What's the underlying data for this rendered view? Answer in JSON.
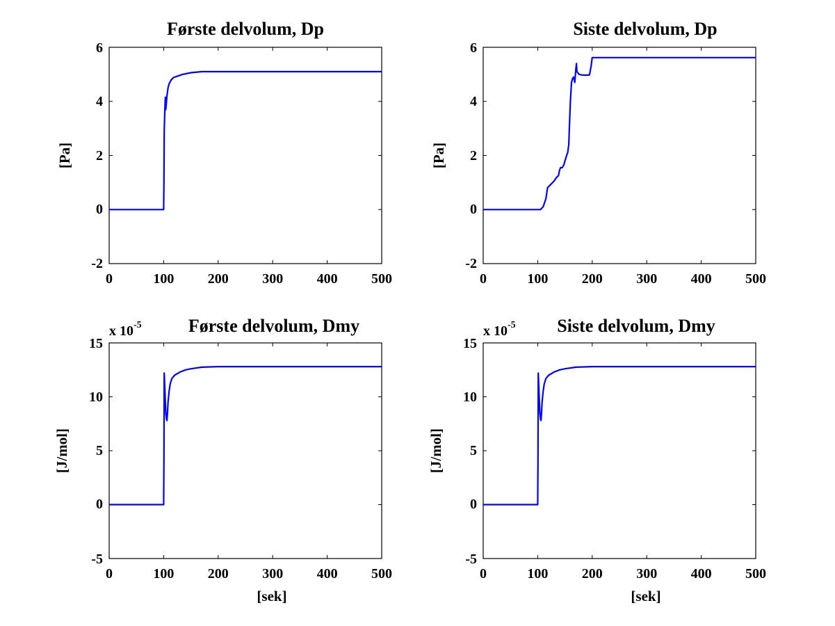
{
  "figure": {
    "background": "#ffffff",
    "line_color": "#0000ff"
  },
  "chart_data": [
    {
      "type": "line",
      "title": "Første delvolum, Dp",
      "xlabel": "",
      "ylabel": "[Pa]",
      "xlim": [
        0,
        500
      ],
      "ylim": [
        -2,
        6
      ],
      "xticks": [
        "0",
        "100",
        "200",
        "300",
        "400",
        "500"
      ],
      "yticks": [
        "-2",
        "0",
        "2",
        "4",
        "6"
      ],
      "exponent_base": "",
      "exponent_power": "",
      "grid": false,
      "series": [
        {
          "x": [
            0,
            99,
            100,
            100.5,
            101,
            102,
            103,
            104,
            106,
            108,
            110,
            114,
            118,
            125,
            135,
            150,
            170,
            200,
            250,
            500
          ],
          "y": [
            0,
            0,
            0,
            1.0,
            2.9,
            3.6,
            4.15,
            3.7,
            4.2,
            4.5,
            4.65,
            4.8,
            4.88,
            4.93,
            5.0,
            5.06,
            5.1,
            5.1,
            5.1,
            5.1
          ]
        }
      ]
    },
    {
      "type": "line",
      "title": "Siste delvolum, Dp",
      "xlabel": "",
      "ylabel": "[Pa]",
      "xlim": [
        0,
        500
      ],
      "ylim": [
        -2,
        6
      ],
      "xticks": [
        "0",
        "100",
        "200",
        "300",
        "400",
        "500"
      ],
      "yticks": [
        "-2",
        "0",
        "2",
        "4",
        "6"
      ],
      "exponent_base": "",
      "exponent_power": "",
      "grid": false,
      "series": [
        {
          "x": [
            0,
            105,
            110,
            115,
            118,
            120,
            125,
            130,
            135,
            138,
            140,
            142,
            145,
            148,
            150,
            153,
            155,
            157,
            158,
            160,
            162,
            164,
            166,
            168,
            170,
            171,
            172,
            174,
            176,
            180,
            185,
            190,
            195,
            198,
            200,
            230,
            500
          ],
          "y": [
            0,
            0,
            0.1,
            0.4,
            0.8,
            0.85,
            0.95,
            1.05,
            1.2,
            1.25,
            1.45,
            1.55,
            1.55,
            1.65,
            1.8,
            2.0,
            2.1,
            2.4,
            3.0,
            4.0,
            4.7,
            4.85,
            4.9,
            4.7,
            5.2,
            5.4,
            5.1,
            5.05,
            5.0,
            4.98,
            4.97,
            4.97,
            4.98,
            5.3,
            5.62,
            5.62,
            5.62
          ]
        }
      ]
    },
    {
      "type": "line",
      "title": "Første delvolum, Dmy",
      "xlabel": "",
      "ylabel": "[J/mol]",
      "xlim": [
        0,
        500
      ],
      "ylim": [
        -5,
        15
      ],
      "xticks": [
        "0",
        "100",
        "200",
        "300",
        "400",
        "500"
      ],
      "yticks": [
        "-5",
        "0",
        "5",
        "10",
        "15"
      ],
      "exponent_base": "x 10",
      "exponent_power": "-5",
      "grid": false,
      "series": [
        {
          "x": [
            0,
            99,
            100,
            100.5,
            101,
            102,
            103,
            104,
            105,
            106,
            107,
            108,
            110,
            112,
            115,
            120,
            130,
            140,
            150,
            170,
            200,
            250,
            500
          ],
          "y": [
            0,
            0,
            0,
            4,
            12.2,
            11.0,
            9.5,
            8.5,
            8.0,
            7.8,
            8.5,
            9.5,
            10.5,
            11.2,
            11.7,
            12.0,
            12.3,
            12.5,
            12.6,
            12.75,
            12.8,
            12.8,
            12.8
          ]
        }
      ]
    },
    {
      "type": "line",
      "title": "Siste delvolum, Dmy",
      "xlabel": "[sek]",
      "ylabel": "[J/mol]",
      "xlim": [
        0,
        500
      ],
      "ylim": [
        -5,
        15
      ],
      "xticks": [
        "0",
        "100",
        "200",
        "300",
        "400",
        "500"
      ],
      "yticks": [
        "-5",
        "0",
        "5",
        "10",
        "15"
      ],
      "exponent_base": "x 10",
      "exponent_power": "-5",
      "grid": false,
      "series": [
        {
          "x": [
            0,
            99,
            100,
            100.5,
            101,
            102,
            103,
            104,
            105,
            106,
            107,
            108,
            110,
            112,
            115,
            120,
            130,
            140,
            150,
            170,
            200,
            250,
            500
          ],
          "y": [
            0,
            0,
            0,
            4,
            12.2,
            11.0,
            9.5,
            8.5,
            8.0,
            7.8,
            8.5,
            9.5,
            10.5,
            11.2,
            11.7,
            12.0,
            12.3,
            12.5,
            12.6,
            12.75,
            12.8,
            12.8,
            12.8
          ]
        }
      ]
    }
  ],
  "shared_xlabel": "[sek]"
}
